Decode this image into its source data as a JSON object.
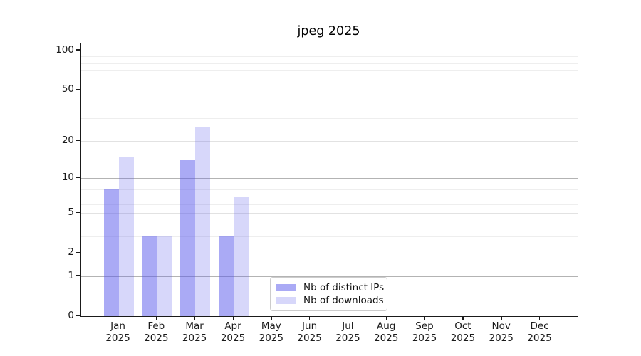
{
  "chart_data": {
    "type": "bar",
    "title": "jpeg 2025",
    "year": "2025",
    "categories": [
      "Jan",
      "Feb",
      "Mar",
      "Apr",
      "May",
      "Jun",
      "Jul",
      "Aug",
      "Sep",
      "Oct",
      "Nov",
      "Dec"
    ],
    "series": [
      {
        "name": "Nb of distinct IPs",
        "color": "rgba(85,85,235,0.5)",
        "values": [
          8,
          3,
          14,
          3,
          0,
          0,
          0,
          0,
          0,
          0,
          0,
          0
        ]
      },
      {
        "name": "Nb of downloads",
        "color": "rgba(85,85,235,0.235)",
        "values": [
          15,
          3,
          26,
          7,
          0,
          0,
          0,
          0,
          0,
          0,
          0,
          0
        ]
      }
    ],
    "xlabel": "",
    "ylabel": "",
    "yscale": "log1p",
    "ylim": [
      0,
      113
    ],
    "yticks": [
      0,
      1,
      2,
      5,
      10,
      20,
      50,
      100
    ],
    "grid_major": [
      1,
      10,
      100
    ],
    "grid_light": [
      2,
      5,
      20,
      50
    ],
    "grid_minor": [
      3,
      4,
      6,
      7,
      8,
      9,
      30,
      40,
      60,
      70,
      80,
      90
    ],
    "grid": "horizontal",
    "legend_position": "bottom-center-inside"
  },
  "colors": {
    "grid_major": "#b3b3b3",
    "grid_light": "#e2e2e2",
    "grid_minor": "#eeeeee",
    "axis": "#1a1a1a",
    "text": "#1a1a1a",
    "background": "#ffffff"
  }
}
